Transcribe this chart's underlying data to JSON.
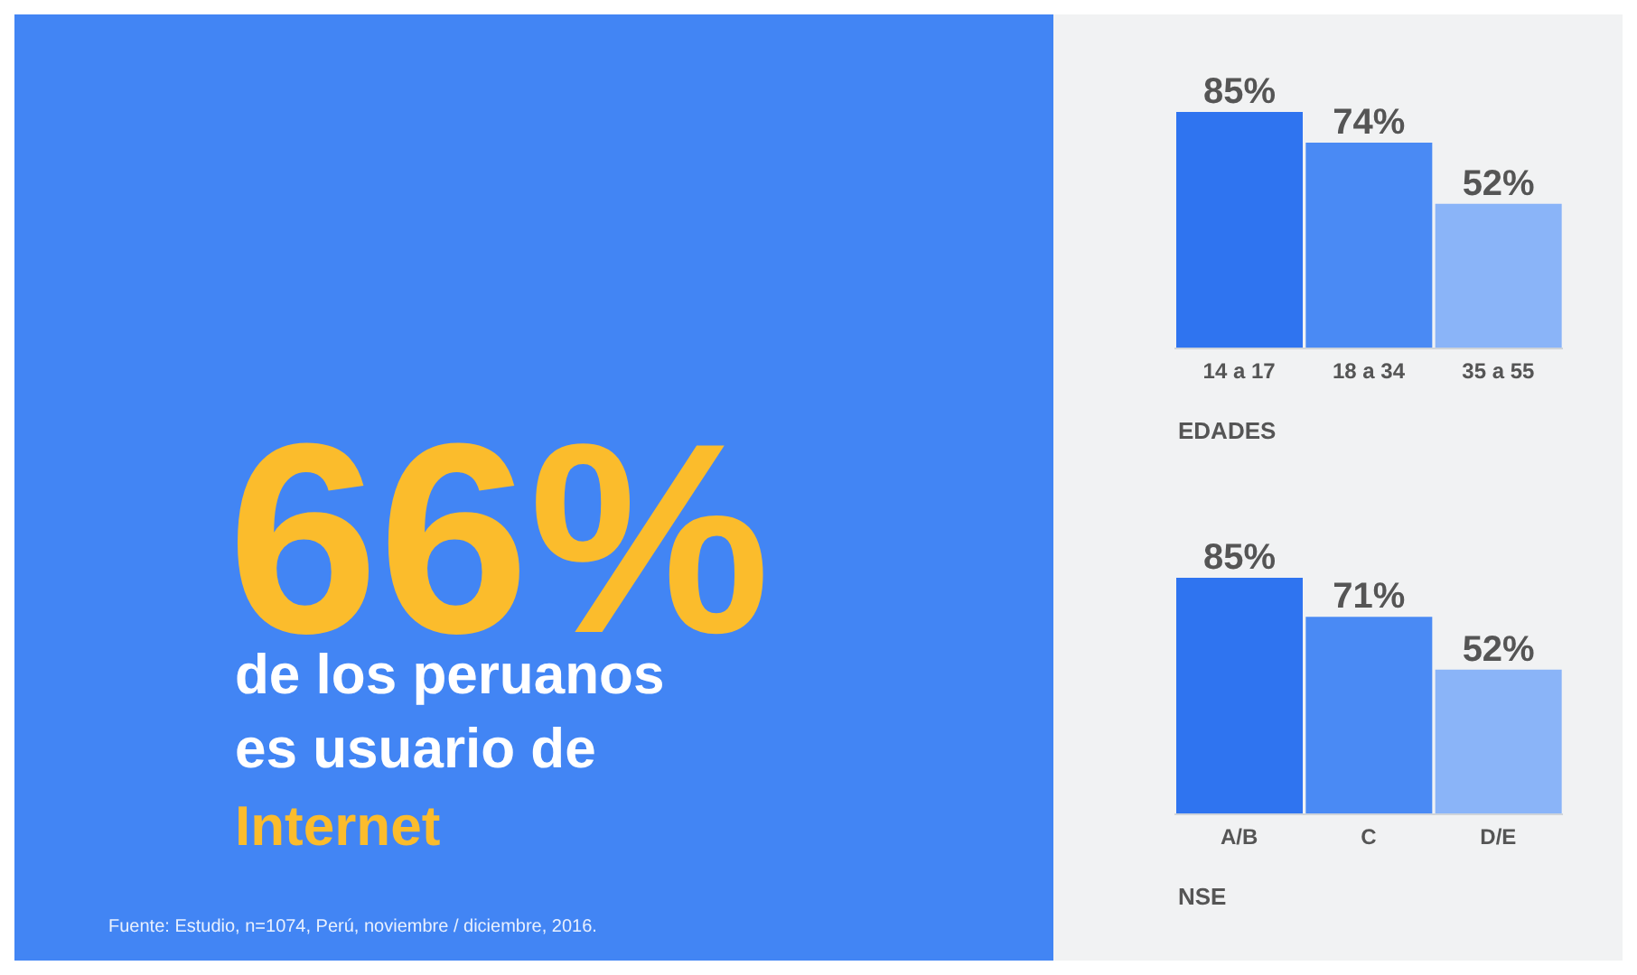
{
  "chart_data": [
    {
      "type": "other",
      "title": "66%",
      "subtitle": "de los peruanos es usuario de",
      "annotations": [
        "Internet",
        "Fuente: Estudio, n=1074, Perú, noviembre / diciembre, 2016."
      ]
    },
    {
      "type": "bar",
      "xlabel": "EDADES",
      "categories": [
        "14 a 17",
        "18 a 34",
        "35 a 55"
      ],
      "values": [
        85,
        74,
        52
      ],
      "colors": [
        "#2f74f0",
        "#4a8af4",
        "#8ab4f8"
      ],
      "value_labels": [
        "85%",
        "74%",
        "52%"
      ]
    },
    {
      "type": "bar",
      "xlabel": "NSE",
      "categories": [
        "A/B",
        "C",
        "D/E"
      ],
      "values": [
        85,
        71,
        52
      ],
      "colors": [
        "#2f74f0",
        "#4a8af4",
        "#8ab4f8"
      ],
      "value_labels": [
        "85%",
        "71%",
        "52%"
      ]
    }
  ]
}
